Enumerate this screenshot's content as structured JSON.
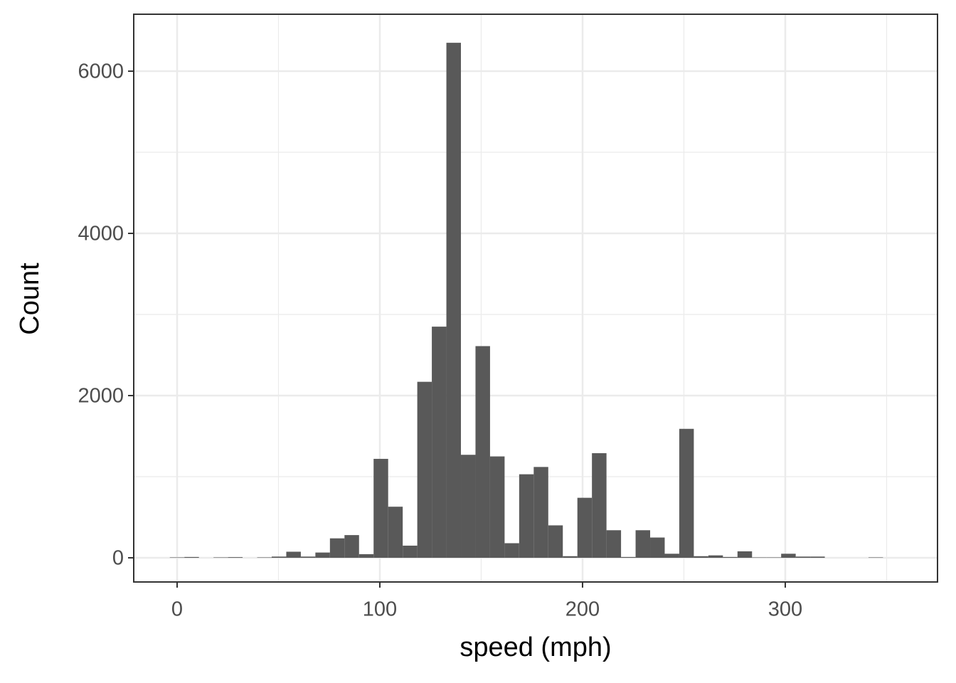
{
  "chart_data": {
    "type": "histogram",
    "x_label": "speed (mph)",
    "y_label": "Count",
    "bins": [
      -3.59,
      3.59,
      10.77,
      17.95,
      25.13,
      32.31,
      39.49,
      46.67,
      53.85,
      61.03,
      68.21,
      75.39,
      82.57,
      89.75,
      96.93,
      104.11,
      111.29,
      118.47,
      125.65,
      132.83,
      140.01,
      147.19,
      154.37,
      161.55,
      168.73,
      175.91,
      183.09,
      190.27,
      197.45,
      204.63,
      211.81,
      218.99,
      226.17,
      233.35,
      240.53,
      247.71,
      254.89,
      262.07,
      269.25,
      276.43,
      283.61,
      290.79,
      297.97,
      305.15,
      312.33,
      319.51,
      326.69,
      333.87,
      341.05,
      348.23,
      355.41
    ],
    "values": [
      5,
      10,
      0,
      5,
      8,
      0,
      5,
      15,
      75,
      15,
      65,
      240,
      280,
      45,
      1220,
      630,
      150,
      2170,
      2850,
      6350,
      1270,
      2610,
      1250,
      180,
      1030,
      1120,
      400,
      20,
      740,
      1290,
      340,
      10,
      340,
      250,
      50,
      1590,
      20,
      30,
      10,
      80,
      5,
      5,
      50,
      15,
      15,
      0,
      0,
      0,
      5,
      0
    ],
    "color": "#595959",
    "xlim": [
      -21.4,
      375.1
    ],
    "ylim": [
      -298,
      6702
    ],
    "xticks": [
      0,
      100,
      200,
      300
    ],
    "yticks": [
      0,
      2000,
      4000,
      6000
    ],
    "grid": true
  }
}
